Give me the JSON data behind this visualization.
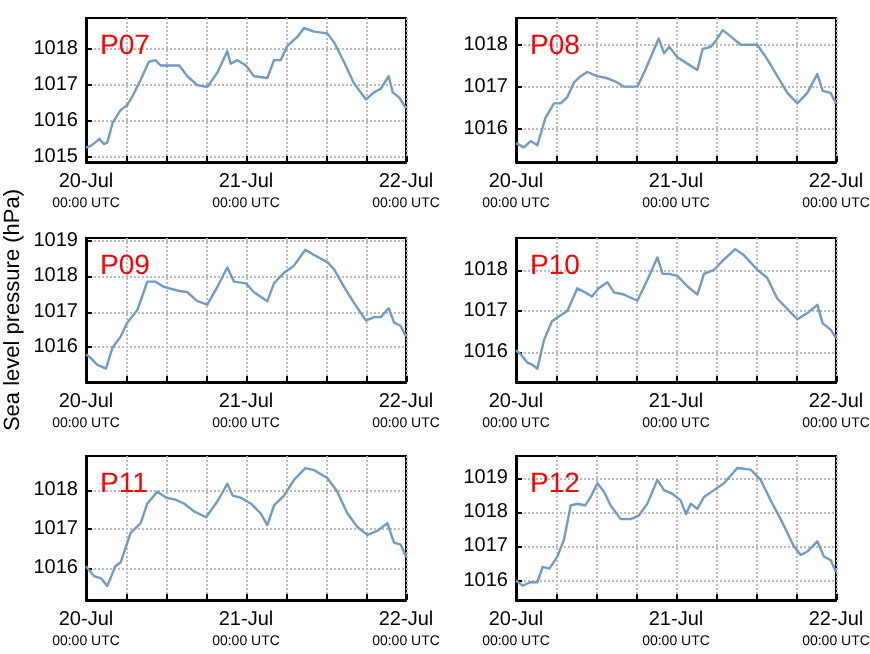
{
  "chart_data": [
    {
      "type": "line",
      "title": "P07",
      "xlim": [
        "--07-20T00:00",
        "--07-22T00:00"
      ],
      "ylim": [
        1014.85,
        1018.88
      ],
      "yticks": [
        1015,
        1016,
        1017,
        1018
      ],
      "grid": true,
      "line_style": "solid",
      "marker": "none",
      "xticks": [
        {
          "value": "--07-20T00:00",
          "label": "20-Jul\n00:00 UTC"
        },
        {
          "value": "--07-20T06:00",
          "label": null
        },
        {
          "value": "--07-20T12:00",
          "label": null
        },
        {
          "value": "--07-20T18:00",
          "label": null
        },
        {
          "value": "--07-21T00:00",
          "label": "21-Jul\n00:00 UTC"
        },
        {
          "value": "--07-21T06:00",
          "label": null
        },
        {
          "value": "--07-21T12:00",
          "label": null
        },
        {
          "value": "--07-21T18:00",
          "label": null
        },
        {
          "value": "--07-22T00:00",
          "label": "22-Jul\n00:00 UTC"
        }
      ],
      "series": [
        {
          "color": "#6f9bc4",
          "x": [
            "--07-20T00:00",
            "--07-20T00:42",
            "--07-20T01:24",
            "--07-20T02:00",
            "--07-20T02:42",
            "--07-20T03:12",
            "--07-20T04:00",
            "--07-20T05:12",
            "--07-20T06:12",
            "--07-20T07:00",
            "--07-20T08:12",
            "--07-20T09:24",
            "--07-20T10:24",
            "--07-20T11:12",
            "--07-20T12:42",
            "--07-20T14:00",
            "--07-20T15:12",
            "--07-20T16:42",
            "--07-20T18:12",
            "--07-20T19:42",
            "--07-20T21:12",
            "--07-20T21:42",
            "--07-20T22:42",
            "--07-21T00:00",
            "--07-21T01:12",
            "--07-21T03:12",
            "--07-21T04:12",
            "--07-21T05:12",
            "--07-21T06:12",
            "--07-21T07:42",
            "--07-21T08:42",
            "--07-21T10:12",
            "--07-21T12:12",
            "--07-21T13:12",
            "--07-21T14:42",
            "--07-21T16:12",
            "--07-21T18:00",
            "--07-21T19:12",
            "--07-21T20:12",
            "--07-21T21:24",
            "--07-21T22:00",
            "--07-21T23:00",
            "--07-22T00:00"
          ],
          "values": [
            1015.25,
            1015.3,
            1015.4,
            1015.5,
            1015.35,
            1015.4,
            1015.95,
            1016.3,
            1016.45,
            1016.7,
            1017.15,
            1017.65,
            1017.7,
            1017.55,
            1017.55,
            1017.55,
            1017.25,
            1017.0,
            1016.95,
            1017.35,
            1017.95,
            1017.6,
            1017.7,
            1017.55,
            1017.25,
            1017.2,
            1017.7,
            1017.7,
            1018.1,
            1018.35,
            1018.6,
            1018.5,
            1018.45,
            1018.2,
            1017.65,
            1017.05,
            1016.6,
            1016.8,
            1016.9,
            1017.25,
            1016.8,
            1016.65,
            1016.35
          ]
        }
      ]
    },
    {
      "type": "line",
      "title": "P08",
      "xlim": [
        "--07-20T00:00",
        "--07-22T00:00"
      ],
      "ylim": [
        1015.2,
        1018.64
      ],
      "yticks": [
        1016,
        1017,
        1018
      ],
      "grid": true,
      "line_style": "solid",
      "marker": "none",
      "xticks": [
        {
          "value": "--07-20T00:00",
          "label": "20-Jul\n00:00 UTC"
        },
        {
          "value": "--07-20T06:00",
          "label": null
        },
        {
          "value": "--07-20T12:00",
          "label": null
        },
        {
          "value": "--07-20T18:00",
          "label": null
        },
        {
          "value": "--07-21T00:00",
          "label": "21-Jul\n00:00 UTC"
        },
        {
          "value": "--07-21T06:00",
          "label": null
        },
        {
          "value": "--07-21T12:00",
          "label": null
        },
        {
          "value": "--07-21T18:00",
          "label": null
        },
        {
          "value": "--07-22T00:00",
          "label": "22-Jul\n00:00 UTC"
        }
      ],
      "series": [
        {
          "color": "#6f9bc4",
          "x": [
            "--07-20T00:00",
            "--07-20T01:12",
            "--07-20T02:12",
            "--07-20T03:12",
            "--07-20T04:24",
            "--07-20T05:42",
            "--07-20T06:42",
            "--07-20T07:42",
            "--07-20T08:42",
            "--07-20T09:42",
            "--07-20T10:42",
            "--07-20T12:12",
            "--07-20T13:42",
            "--07-20T15:12",
            "--07-20T16:12",
            "--07-20T18:12",
            "--07-20T19:24",
            "--07-20T20:12",
            "--07-20T21:24",
            "--07-20T22:12",
            "--07-20T23:00",
            "--07-21T00:12",
            "--07-21T01:42",
            "--07-21T03:12",
            "--07-21T04:00",
            "--07-21T05:12",
            "--07-21T06:00",
            "--07-21T07:00",
            "--07-21T08:12",
            "--07-21T09:42",
            "--07-21T12:12",
            "--07-21T13:42",
            "--07-21T15:12",
            "--07-21T16:42",
            "--07-21T18:12",
            "--07-21T19:42",
            "--07-21T21:12",
            "--07-21T22:00",
            "--07-21T23:12",
            "--07-22T00:00"
          ],
          "values": [
            1015.65,
            1015.55,
            1015.7,
            1015.6,
            1016.25,
            1016.6,
            1016.6,
            1016.75,
            1017.1,
            1017.25,
            1017.35,
            1017.25,
            1017.2,
            1017.1,
            1017.0,
            1017.0,
            1017.4,
            1017.7,
            1018.15,
            1017.8,
            1017.95,
            1017.7,
            1017.55,
            1017.4,
            1017.9,
            1017.95,
            1018.1,
            1018.35,
            1018.2,
            1018.0,
            1018.0,
            1017.65,
            1017.25,
            1016.85,
            1016.6,
            1016.85,
            1017.3,
            1016.9,
            1016.85,
            1016.6
          ]
        }
      ]
    },
    {
      "type": "line",
      "title": "P09",
      "ylabel": "Sea level pressure (hPa)",
      "xlim": [
        "--07-20T00:00",
        "--07-22T00:00"
      ],
      "ylim": [
        1015.02,
        1019.08
      ],
      "yticks": [
        1016,
        1017,
        1018,
        1019
      ],
      "grid": true,
      "line_style": "solid",
      "marker": "none",
      "xticks": [
        {
          "value": "--07-20T00:00",
          "label": "20-Jul\n00:00 UTC"
        },
        {
          "value": "--07-20T06:00",
          "label": null
        },
        {
          "value": "--07-20T12:00",
          "label": null
        },
        {
          "value": "--07-20T18:00",
          "label": null
        },
        {
          "value": "--07-21T00:00",
          "label": "21-Jul\n00:00 UTC"
        },
        {
          "value": "--07-21T06:00",
          "label": null
        },
        {
          "value": "--07-21T12:00",
          "label": null
        },
        {
          "value": "--07-21T18:00",
          "label": null
        },
        {
          "value": "--07-22T00:00",
          "label": "22-Jul\n00:00 UTC"
        }
      ],
      "series": [
        {
          "color": "#6f9bc4",
          "x": [
            "--07-20T00:00",
            "--07-20T00:42",
            "--07-20T01:42",
            "--07-20T03:00",
            "--07-20T04:00",
            "--07-20T05:12",
            "--07-20T06:12",
            "--07-20T07:42",
            "--07-20T09:12",
            "--07-20T10:24",
            "--07-20T11:42",
            "--07-20T13:42",
            "--07-20T15:12",
            "--07-20T16:42",
            "--07-20T18:12",
            "--07-20T19:42",
            "--07-20T21:12",
            "--07-20T22:12",
            "--07-21T00:00",
            "--07-21T01:12",
            "--07-21T03:12",
            "--07-21T04:12",
            "--07-21T05:42",
            "--07-21T07:12",
            "--07-21T08:54",
            "--07-21T10:12",
            "--07-21T12:12",
            "--07-21T13:12",
            "--07-21T14:42",
            "--07-21T16:12",
            "--07-21T18:00",
            "--07-21T19:12",
            "--07-21T20:12",
            "--07-21T21:24",
            "--07-21T22:12",
            "--07-21T23:12",
            "--07-22T00:00"
          ],
          "values": [
            1015.8,
            1015.7,
            1015.5,
            1015.4,
            1016.0,
            1016.3,
            1016.7,
            1017.05,
            1017.85,
            1017.85,
            1017.7,
            1017.6,
            1017.55,
            1017.3,
            1017.2,
            1017.7,
            1018.25,
            1017.85,
            1017.8,
            1017.55,
            1017.3,
            1017.8,
            1018.1,
            1018.3,
            1018.75,
            1018.6,
            1018.4,
            1018.2,
            1017.7,
            1017.25,
            1016.75,
            1016.85,
            1016.85,
            1017.1,
            1016.7,
            1016.6,
            1016.3
          ]
        }
      ]
    },
    {
      "type": "line",
      "title": "P10",
      "xlim": [
        "--07-20T00:00",
        "--07-22T00:00"
      ],
      "ylim": [
        1015.28,
        1018.77
      ],
      "yticks": [
        1016,
        1017,
        1018
      ],
      "grid": true,
      "line_style": "solid",
      "marker": "none",
      "xticks": [
        {
          "value": "--07-20T00:00",
          "label": "20-Jul\n00:00 UTC"
        },
        {
          "value": "--07-20T06:00",
          "label": null
        },
        {
          "value": "--07-20T12:00",
          "label": null
        },
        {
          "value": "--07-20T18:00",
          "label": null
        },
        {
          "value": "--07-21T00:00",
          "label": "21-Jul\n00:00 UTC"
        },
        {
          "value": "--07-21T06:00",
          "label": null
        },
        {
          "value": "--07-21T12:00",
          "label": null
        },
        {
          "value": "--07-21T18:00",
          "label": null
        },
        {
          "value": "--07-22T00:00",
          "label": "22-Jul\n00:00 UTC"
        }
      ],
      "series": [
        {
          "color": "#6f9bc4",
          "x": [
            "--07-20T00:00",
            "--07-20T00:42",
            "--07-20T01:42",
            "--07-20T02:24",
            "--07-20T03:12",
            "--07-20T04:12",
            "--07-20T05:24",
            "--07-20T06:42",
            "--07-20T07:42",
            "--07-20T09:12",
            "--07-20T10:24",
            "--07-20T11:24",
            "--07-20T12:24",
            "--07-20T13:42",
            "--07-20T14:42",
            "--07-20T16:12",
            "--07-20T18:12",
            "--07-20T19:42",
            "--07-20T21:12",
            "--07-20T22:00",
            "--07-20T23:00",
            "--07-21T00:12",
            "--07-21T01:42",
            "--07-21T03:12",
            "--07-21T04:12",
            "--07-21T05:42",
            "--07-21T07:12",
            "--07-21T08:54",
            "--07-21T10:12",
            "--07-21T12:12",
            "--07-21T13:42",
            "--07-21T15:12",
            "--07-21T16:42",
            "--07-21T18:12",
            "--07-21T19:42",
            "--07-21T21:12",
            "--07-21T22:00",
            "--07-21T23:12",
            "--07-22T00:00"
          ],
          "values": [
            1016.05,
            1015.95,
            1015.75,
            1015.7,
            1015.6,
            1016.3,
            1016.75,
            1016.9,
            1017.0,
            1017.55,
            1017.45,
            1017.35,
            1017.55,
            1017.7,
            1017.45,
            1017.4,
            1017.25,
            1017.75,
            1018.3,
            1017.9,
            1017.9,
            1017.85,
            1017.6,
            1017.4,
            1017.9,
            1018.0,
            1018.25,
            1018.5,
            1018.35,
            1018.0,
            1017.8,
            1017.3,
            1017.05,
            1016.8,
            1016.95,
            1017.15,
            1016.7,
            1016.55,
            1016.35
          ]
        }
      ]
    },
    {
      "type": "line",
      "title": "P11",
      "xlim": [
        "--07-20T00:00",
        "--07-22T00:00"
      ],
      "ylim": [
        1015.19,
        1018.86
      ],
      "yticks": [
        1016,
        1017,
        1018
      ],
      "grid": true,
      "line_style": "solid",
      "marker": "none",
      "xticks": [
        {
          "value": "--07-20T00:00",
          "label": "20-Jul\n00:00 UTC"
        },
        {
          "value": "--07-20T06:00",
          "label": null
        },
        {
          "value": "--07-20T12:00",
          "label": null
        },
        {
          "value": "--07-20T18:00",
          "label": null
        },
        {
          "value": "--07-21T00:00",
          "label": "21-Jul\n00:00 UTC"
        },
        {
          "value": "--07-21T06:00",
          "label": null
        },
        {
          "value": "--07-21T12:00",
          "label": null
        },
        {
          "value": "--07-21T18:00",
          "label": null
        },
        {
          "value": "--07-22T00:00",
          "label": "22-Jul\n00:00 UTC"
        }
      ],
      "series": [
        {
          "color": "#6f9bc4",
          "x": [
            "--07-20T00:00",
            "--07-20T01:12",
            "--07-20T02:12",
            "--07-20T03:12",
            "--07-20T04:24",
            "--07-20T05:12",
            "--07-20T06:42",
            "--07-20T08:12",
            "--07-20T09:12",
            "--07-20T10:42",
            "--07-20T12:00",
            "--07-20T13:24",
            "--07-20T14:42",
            "--07-20T16:12",
            "--07-20T18:00",
            "--07-20T19:42",
            "--07-20T21:12",
            "--07-20T22:00",
            "--07-20T23:12",
            "--07-21T00:42",
            "--07-21T02:12",
            "--07-21T03:12",
            "--07-21T04:12",
            "--07-21T05:42",
            "--07-21T07:12",
            "--07-21T08:54",
            "--07-21T10:12",
            "--07-21T12:12",
            "--07-21T13:42",
            "--07-21T15:12",
            "--07-21T16:42",
            "--07-21T18:12",
            "--07-21T19:42",
            "--07-21T21:12",
            "--07-21T22:12",
            "--07-21T23:12",
            "--07-22T00:00"
          ],
          "values": [
            1016.05,
            1015.8,
            1015.75,
            1015.55,
            1016.05,
            1016.15,
            1016.9,
            1017.15,
            1017.65,
            1017.95,
            1017.8,
            1017.75,
            1017.65,
            1017.45,
            1017.3,
            1017.7,
            1018.15,
            1017.85,
            1017.8,
            1017.65,
            1017.4,
            1017.1,
            1017.6,
            1017.85,
            1018.25,
            1018.55,
            1018.5,
            1018.3,
            1017.95,
            1017.4,
            1017.05,
            1016.85,
            1016.95,
            1017.15,
            1016.65,
            1016.6,
            1016.3
          ]
        }
      ]
    },
    {
      "type": "line",
      "title": "P12",
      "xlim": [
        "--07-20T00:00",
        "--07-22T00:00"
      ],
      "ylim": [
        1015.43,
        1019.65
      ],
      "yticks": [
        1016,
        1017,
        1018,
        1019
      ],
      "grid": true,
      "line_style": "solid",
      "marker": "none",
      "xticks": [
        {
          "value": "--07-20T00:00",
          "label": "20-Jul\n00:00 UTC"
        },
        {
          "value": "--07-20T06:00",
          "label": null
        },
        {
          "value": "--07-20T12:00",
          "label": null
        },
        {
          "value": "--07-20T18:00",
          "label": null
        },
        {
          "value": "--07-21T00:00",
          "label": "21-Jul\n00:00 UTC"
        },
        {
          "value": "--07-21T06:00",
          "label": null
        },
        {
          "value": "--07-21T12:00",
          "label": null
        },
        {
          "value": "--07-21T18:00",
          "label": null
        },
        {
          "value": "--07-22T00:00",
          "label": "22-Jul\n00:00 UTC"
        }
      ],
      "series": [
        {
          "color": "#6f9bc4",
          "x": [
            "--07-20T00:00",
            "--07-20T01:00",
            "--07-20T02:12",
            "--07-20T03:12",
            "--07-20T04:00",
            "--07-20T05:00",
            "--07-20T06:12",
            "--07-20T07:12",
            "--07-20T08:12",
            "--07-20T09:12",
            "--07-20T10:24",
            "--07-20T11:12",
            "--07-20T12:12",
            "--07-20T13:12",
            "--07-20T14:12",
            "--07-20T15:42",
            "--07-20T17:12",
            "--07-20T18:24",
            "--07-20T19:42",
            "--07-20T21:12",
            "--07-20T22:12",
            "--07-20T23:24",
            "--07-21T00:42",
            "--07-21T01:30",
            "--07-21T02:12",
            "--07-21T03:12",
            "--07-21T04:12",
            "--07-21T05:42",
            "--07-21T07:12",
            "--07-21T09:12",
            "--07-21T11:12",
            "--07-21T12:42",
            "--07-21T14:12",
            "--07-21T15:42",
            "--07-21T17:42",
            "--07-21T18:42",
            "--07-21T19:42",
            "--07-21T21:12",
            "--07-21T22:12",
            "--07-21T23:12",
            "--07-22T00:00"
          ],
          "values": [
            1016.0,
            1015.85,
            1015.95,
            1015.95,
            1016.4,
            1016.35,
            1016.7,
            1017.2,
            1018.2,
            1018.25,
            1018.2,
            1018.45,
            1018.85,
            1018.6,
            1018.2,
            1017.8,
            1017.8,
            1017.9,
            1018.25,
            1018.95,
            1018.65,
            1018.55,
            1018.35,
            1017.95,
            1018.25,
            1018.1,
            1018.45,
            1018.65,
            1018.85,
            1019.3,
            1019.25,
            1018.95,
            1018.35,
            1017.8,
            1017.0,
            1016.75,
            1016.85,
            1017.15,
            1016.7,
            1016.6,
            1016.25
          ]
        }
      ]
    }
  ]
}
